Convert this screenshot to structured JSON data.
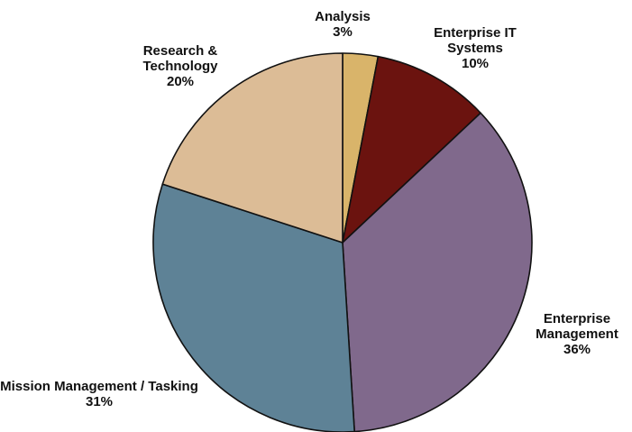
{
  "chart_data": {
    "type": "pie",
    "categories": [
      "Analysis",
      "Enterprise IT Systems",
      "Enterprise Management",
      "Mission Management / Tasking",
      "Research & Technology"
    ],
    "values": [
      3,
      10,
      36,
      31,
      20
    ],
    "value_labels": [
      "3%",
      "10%",
      "36%",
      "31%",
      "20%"
    ],
    "colors": [
      "#d9b46a",
      "#6b130f",
      "#80698c",
      "#5e8296",
      "#dcbc96"
    ]
  }
}
